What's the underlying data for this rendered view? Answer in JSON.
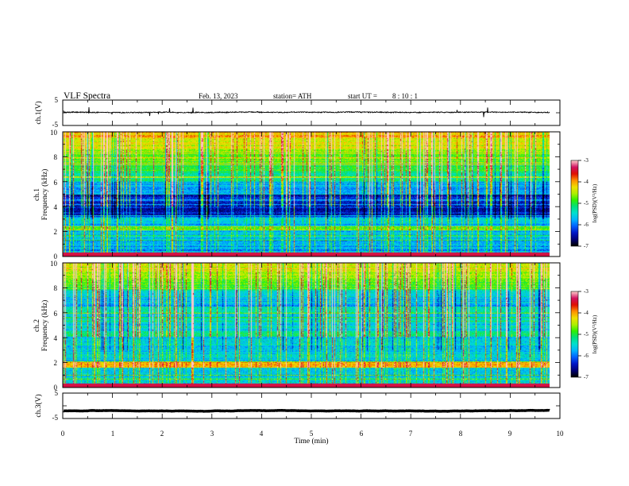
{
  "header": {
    "title": "VLF Spectra",
    "date": "Feb. 13, 2023",
    "station": "station= ATH",
    "start_label": "start UT =",
    "start_time": "8 : 10 : 1"
  },
  "chart_data": [
    {
      "id": "ch1_waveform",
      "type": "line",
      "ylabel": "ch.1(V)",
      "ylim": [
        -5,
        5
      ],
      "yticks": [
        5,
        -5
      ],
      "xlim": [
        0,
        10
      ],
      "trace": {
        "x_end_min": 9.8,
        "baseline_v": 0.2,
        "noise_v": 0.3,
        "color": "#000000"
      }
    },
    {
      "id": "ch1_spectrogram",
      "type": "heatmap",
      "ylabel_lines": [
        "ch.1",
        "Frequency (kHz)"
      ],
      "ylim": [
        0,
        10
      ],
      "yticks": [
        10,
        8,
        6,
        4,
        2,
        0
      ],
      "xlim": [
        0,
        10
      ],
      "data_x_end_min": 9.8,
      "colorbar": {
        "label": "log(PSD)(V²/Hz)",
        "range": [
          -7,
          -3
        ],
        "ticks": [
          "-3",
          "-4",
          "-5",
          "-6",
          "-7"
        ]
      }
    },
    {
      "id": "ch2_spectrogram",
      "type": "heatmap",
      "ylabel_lines": [
        "ch.2",
        "Frequency (kHz)"
      ],
      "ylim": [
        0,
        10
      ],
      "yticks": [
        10,
        8,
        6,
        4,
        2,
        0
      ],
      "xlim": [
        0,
        10
      ],
      "data_x_end_min": 9.8,
      "colorbar": {
        "label": "log(PSD)(V²/Hz)",
        "range": [
          -7,
          -3
        ],
        "ticks": [
          "-3",
          "-4",
          "-5",
          "-6",
          "-7"
        ]
      }
    },
    {
      "id": "ch3_waveform",
      "type": "line",
      "ylabel": "ch.3(V)",
      "ylim": [
        -5,
        5
      ],
      "yticks": [
        5,
        -5
      ],
      "xlim": [
        0,
        10
      ],
      "trace": {
        "x_end_min": 9.8,
        "baseline_v": -2.0,
        "noise_v": 0.05,
        "color": "#000000"
      }
    }
  ],
  "x_axis": {
    "label": "Time (min)",
    "ticks": [
      "0",
      "1",
      "2",
      "3",
      "4",
      "5",
      "6",
      "7",
      "8",
      "9",
      "10"
    ]
  },
  "colors": {
    "colormap": [
      "#000000",
      "#00007a",
      "#0018c8",
      "#0060ff",
      "#00b4ff",
      "#00e0d0",
      "#00e080",
      "#30f000",
      "#b0f000",
      "#f0e000",
      "#ff9000",
      "#e01000",
      "#d01060",
      "#ffc8c8"
    ]
  }
}
